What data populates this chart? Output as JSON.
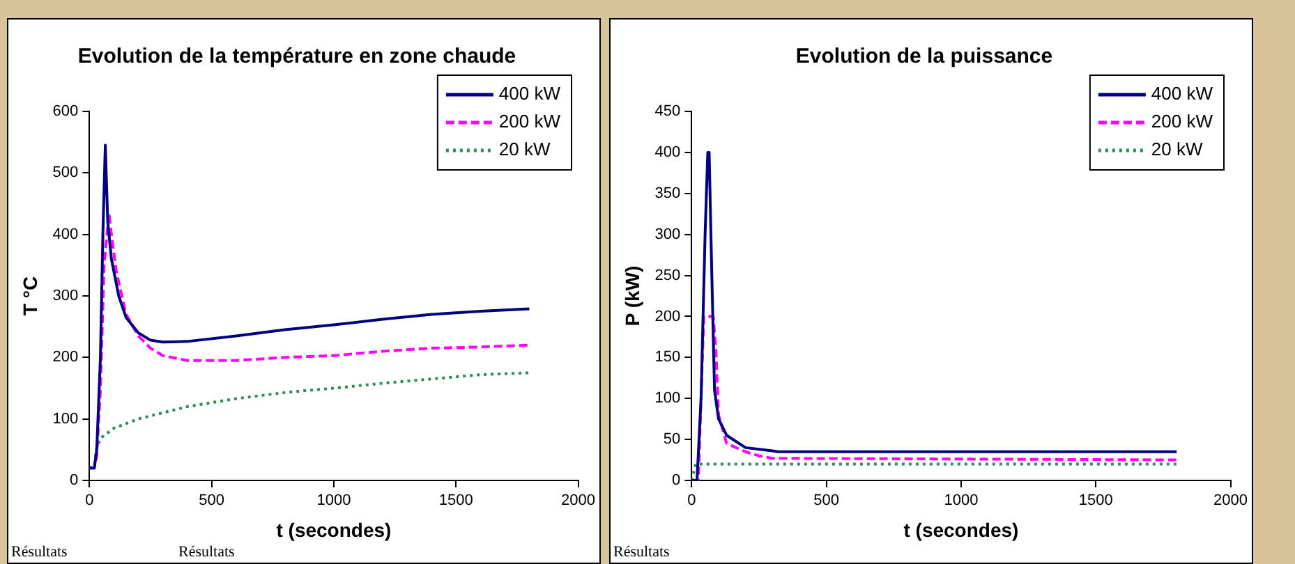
{
  "chart_data": [
    {
      "type": "line",
      "title": "Evolution de la température en zone chaude",
      "xlabel": "t (secondes)",
      "ylabel": "T °C",
      "xlim": [
        0,
        2000
      ],
      "xticks": [
        0,
        500,
        1000,
        1500,
        2000
      ],
      "ylim": [
        0,
        600
      ],
      "yticks": [
        0,
        100,
        200,
        300,
        400,
        500,
        600
      ],
      "grid": false,
      "legend": "top right",
      "marker": "none",
      "annotations": [
        "Résultats",
        "Résultats"
      ],
      "series": [
        {
          "name": "400 kW",
          "color": "#000080",
          "line_style": "solid",
          "x": [
            0,
            20,
            30,
            45,
            55,
            65,
            75,
            90,
            120,
            150,
            200,
            250,
            300,
            400,
            600,
            800,
            1000,
            1200,
            1400,
            1600,
            1800
          ],
          "values": [
            20,
            20,
            50,
            200,
            400,
            545,
            420,
            360,
            300,
            265,
            240,
            228,
            225,
            226,
            235,
            245,
            253,
            262,
            270,
            275,
            279
          ]
        },
        {
          "name": "200 kW",
          "color": "#ff00ff",
          "line_style": "dashed",
          "x": [
            0,
            20,
            30,
            45,
            60,
            80,
            90,
            110,
            150,
            200,
            250,
            300,
            400,
            600,
            800,
            1000,
            1200,
            1400,
            1600,
            1800
          ],
          "values": [
            20,
            20,
            40,
            150,
            350,
            435,
            400,
            340,
            270,
            235,
            215,
            203,
            195,
            195,
            200,
            203,
            210,
            215,
            217,
            220
          ]
        },
        {
          "name": "20 kW",
          "color": "#2e8b57",
          "line_style": "dotted",
          "x": [
            0,
            20,
            30,
            50,
            100,
            200,
            300,
            400,
            600,
            800,
            1000,
            1200,
            1400,
            1600,
            1800
          ],
          "values": [
            20,
            25,
            55,
            70,
            85,
            100,
            110,
            120,
            133,
            143,
            150,
            158,
            165,
            172,
            175
          ]
        }
      ]
    },
    {
      "type": "line",
      "title": "Evolution de la puissance",
      "xlabel": "t (secondes)",
      "ylabel": "P (kW)",
      "xlim": [
        0,
        2000
      ],
      "xticks": [
        0,
        500,
        1000,
        1500,
        2000
      ],
      "ylim": [
        0,
        450
      ],
      "yticks": [
        0,
        50,
        100,
        150,
        200,
        250,
        300,
        350,
        400,
        450
      ],
      "grid": false,
      "legend": "top right",
      "marker": "none",
      "annotations": [
        "Résultats"
      ],
      "series": [
        {
          "name": "400 kW",
          "color": "#000080",
          "line_style": "solid",
          "x": [
            0,
            20,
            35,
            50,
            60,
            65,
            75,
            85,
            100,
            130,
            200,
            300,
            320,
            1800
          ],
          "values": [
            0,
            0,
            100,
            300,
            400,
            400,
            250,
            110,
            75,
            55,
            40,
            36,
            35,
            35
          ]
        },
        {
          "name": "200 kW",
          "color": "#ff00ff",
          "line_style": "dashed",
          "x": [
            0,
            25,
            40,
            45,
            80,
            90,
            100,
            130,
            200,
            250,
            300,
            1800
          ],
          "values": [
            0,
            0,
            150,
            200,
            200,
            160,
            80,
            45,
            35,
            30,
            27,
            25
          ]
        },
        {
          "name": "20 kW",
          "color": "#2e8b57",
          "line_style": "dotted",
          "x": [
            0,
            15,
            1800
          ],
          "values": [
            0,
            20,
            20
          ]
        }
      ]
    }
  ]
}
